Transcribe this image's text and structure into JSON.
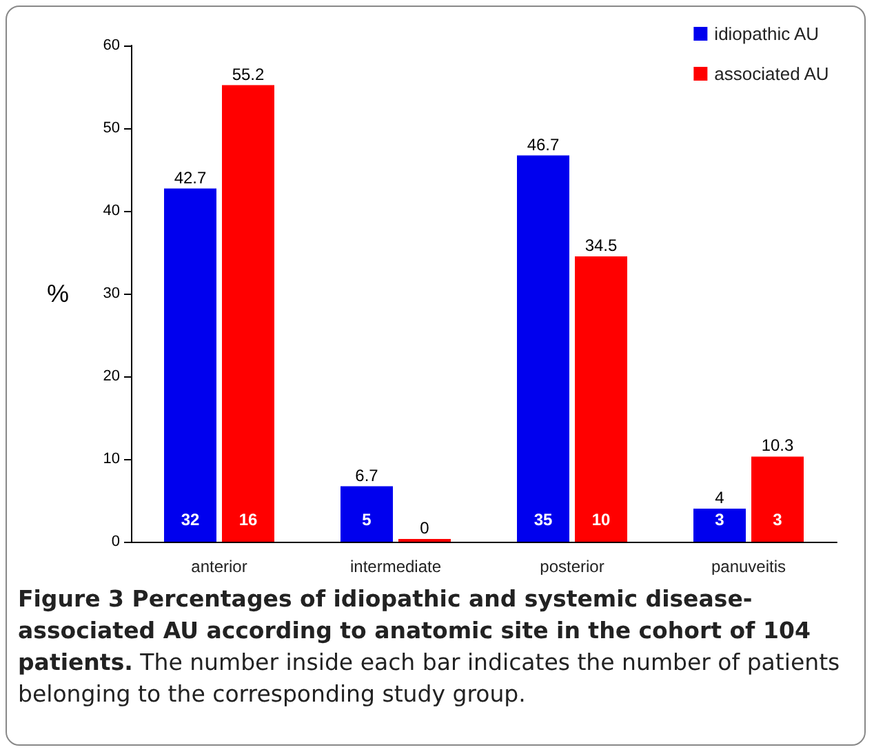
{
  "chart_data": {
    "type": "bar",
    "title": "Figure 3 Percentages of idiopathic and systemic disease-associated AU according to anatomic site in the cohort of 104 patients.",
    "ylabel": "%",
    "categories": [
      "anterior",
      "intermediate",
      "posterior",
      "panuveitis"
    ],
    "series": [
      {
        "name": "idiopathic AU",
        "color": "#0000ee",
        "values": [
          42.7,
          6.7,
          46.7,
          4
        ]
      },
      {
        "name": "associated AU",
        "color": "#ff0000",
        "values": [
          55.2,
          0,
          34.5,
          10.3
        ]
      }
    ],
    "ylim": [
      0,
      60
    ],
    "yticks": [
      0,
      10,
      20,
      30,
      40,
      50,
      60
    ],
    "grid": false,
    "legend": "top right",
    "data_labels": true,
    "annotations": [
      {
        "text": "32",
        "x": "anterior",
        "y": 2
      },
      {
        "text": "16",
        "x": "anterior",
        "y": 2
      },
      {
        "text": "5",
        "x": "intermediate",
        "y": 2
      },
      {
        "text": "35",
        "x": "posterior",
        "y": 2
      },
      {
        "text": "10",
        "x": "posterior",
        "y": 2
      },
      {
        "text": "3",
        "x": "panuveitis",
        "y": 2
      },
      {
        "text": "3",
        "x": "panuveitis",
        "y": 2
      },
      "The number inside each bar indicates the number of patients belonging to the corresponding study group."
    ]
  }
}
